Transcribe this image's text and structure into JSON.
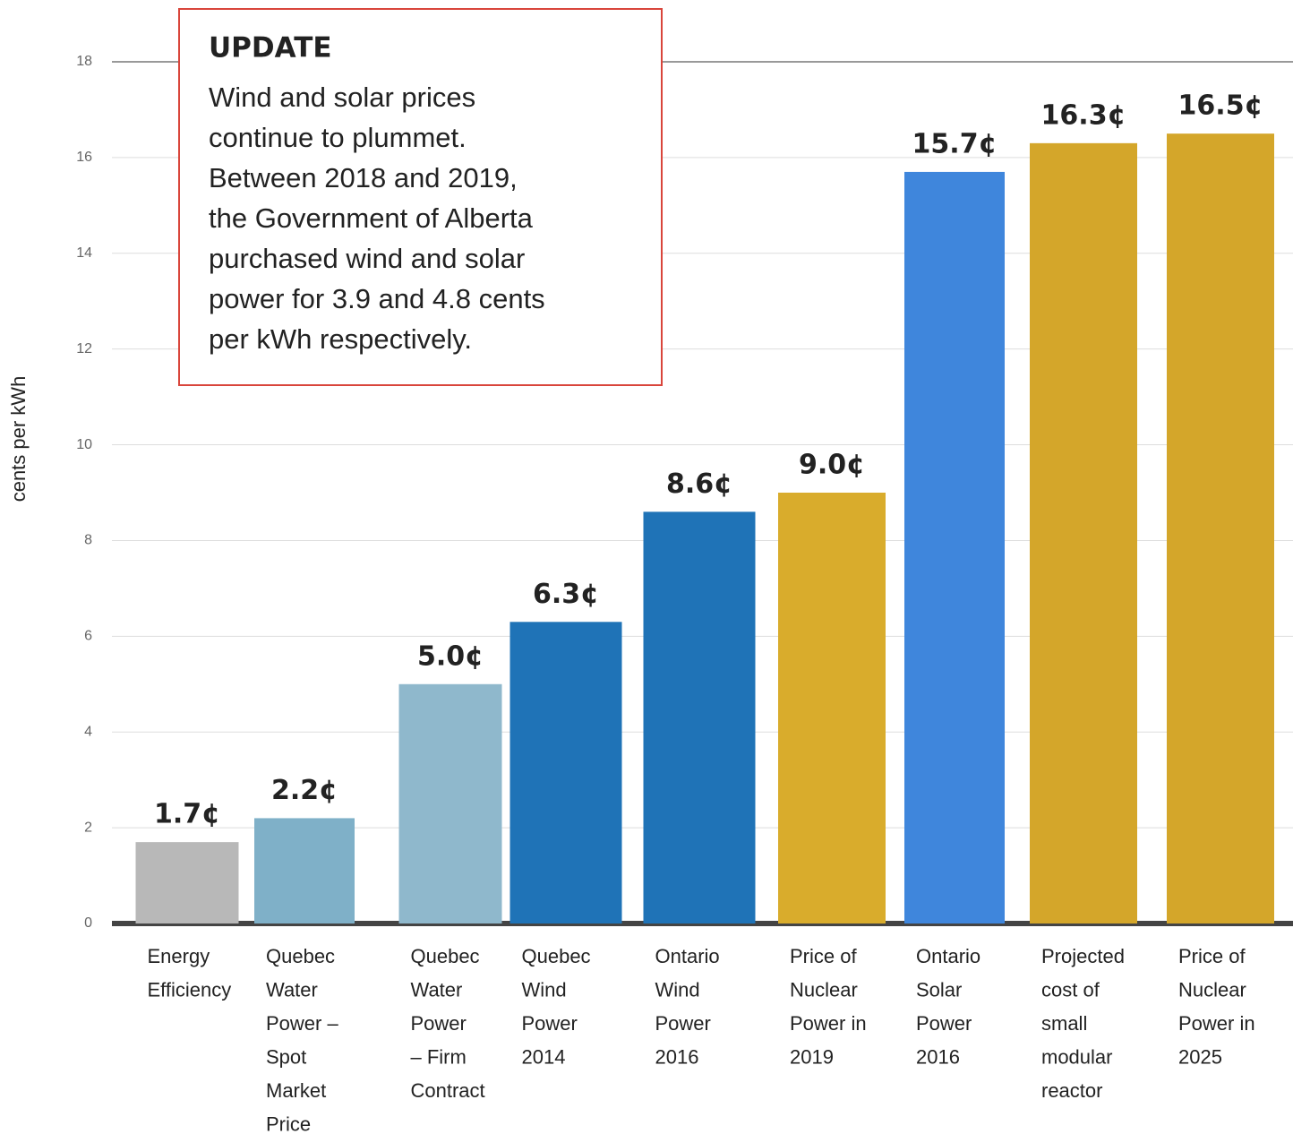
{
  "chart_data": {
    "type": "bar",
    "y_label": "cents per kWh",
    "categories": [
      [
        "Energy",
        "Efficiency"
      ],
      [
        "Quebec",
        "Water",
        "Power –",
        "Spot",
        "Market",
        "Price"
      ],
      [
        "Quebec",
        "Water",
        "Power",
        "– Firm",
        "Contract"
      ],
      [
        "Quebec",
        "Wind",
        "Power",
        "2014"
      ],
      [
        "Ontario",
        "Wind",
        "Power",
        "2016"
      ],
      [
        "Price of",
        "Nuclear",
        "Power in",
        "2019"
      ],
      [
        "Ontario",
        "Solar",
        "Power",
        "2016"
      ],
      [
        "Projected",
        "cost of",
        "small",
        "modular",
        "reactor"
      ],
      [
        "Price of",
        "Nuclear",
        "Power in",
        "2025"
      ]
    ],
    "values": [
      1.7,
      2.2,
      5.0,
      6.3,
      8.6,
      9.0,
      15.7,
      16.3,
      16.5
    ],
    "value_labels": [
      "1.7¢",
      "2.2¢",
      "5.0¢",
      "6.3¢",
      "8.6¢",
      "9.0¢",
      "15.7¢",
      "16.3¢",
      "16.5¢"
    ],
    "colors": [
      "#b8b8b8",
      "#7fb0c8",
      "#8fb8cc",
      "#1f73b7",
      "#1f73b7",
      "#d9ac2c",
      "#3f86dc",
      "#d4a62a",
      "#d4a62a"
    ],
    "ylim": [
      0,
      18
    ],
    "yticks": [
      0,
      2,
      4,
      6,
      8,
      10,
      12,
      14,
      16,
      18
    ],
    "grid": true,
    "annotation": {
      "title": "UPDATE",
      "lines": [
        "Wind and solar prices",
        "continue to plummet.",
        "Between 2018 and 2019,",
        "the Government of Alberta",
        "purchased wind and solar",
        "power for 3.9 and 4.8 cents",
        "per kWh respectively."
      ]
    }
  }
}
